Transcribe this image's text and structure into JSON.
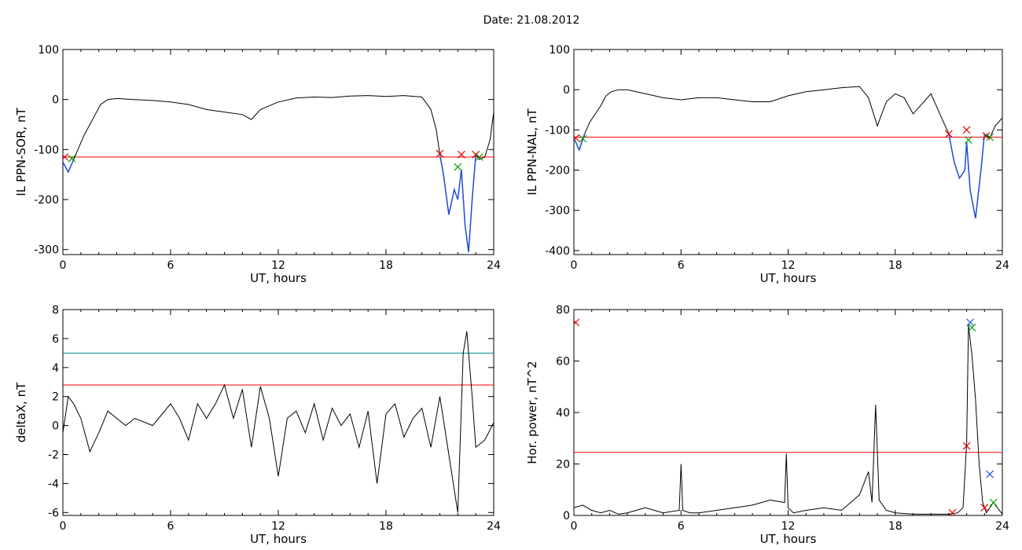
{
  "page": {
    "title": "Date:  21.08.2012"
  },
  "colors": {
    "axis": "#000000",
    "signal": "#000000",
    "threshold": "#ff0000",
    "threshold2": "#008b8b",
    "segment": "#1f4fd6",
    "marker_red": "#e00000",
    "marker_green": "#00a000",
    "marker_blue": "#1f4fd6"
  },
  "chart_data": [
    {
      "type": "line",
      "xlabel": "UT, hours",
      "ylabel": "IL PPN-SOR, nT",
      "xlim": [
        0,
        24
      ],
      "ylim": [
        -310,
        100
      ],
      "xticks": [
        0,
        6,
        12,
        18,
        24
      ],
      "yticks": [
        100,
        0,
        -100,
        -200,
        -300
      ],
      "threshold": -115,
      "series": [
        {
          "x": [
            0,
            0.3,
            0.6,
            0.9,
            1.2,
            1.5,
            1.8,
            2.1,
            2.5,
            3,
            4,
            5,
            6,
            7,
            8,
            9,
            10,
            10.5,
            11,
            12,
            13,
            14,
            15,
            16,
            17,
            18,
            19,
            20,
            20.5,
            20.8,
            21.0,
            21.2,
            21.5,
            21.8,
            22.0,
            22.2,
            22.4,
            22.6,
            22.8,
            23.0,
            23.2,
            23.5,
            23.8,
            24
          ],
          "y": [
            -125,
            -145,
            -120,
            -95,
            -70,
            -50,
            -30,
            -10,
            0,
            2,
            0,
            -2,
            -5,
            -10,
            -20,
            -25,
            -30,
            -40,
            -20,
            -5,
            3,
            5,
            4,
            7,
            8,
            6,
            8,
            5,
            -20,
            -60,
            -110,
            -150,
            -230,
            -180,
            -200,
            -140,
            -250,
            -305,
            -200,
            -110,
            -120,
            -115,
            -80,
            -25
          ]
        }
      ],
      "highlight_segments": [
        [
          0,
          0.6
        ],
        [
          21.0,
          23.0
        ]
      ],
      "markers": [
        {
          "x": 0.1,
          "y": -115,
          "color": "red"
        },
        {
          "x": 0.5,
          "y": -118,
          "color": "green"
        },
        {
          "x": 21.0,
          "y": -108,
          "color": "red"
        },
        {
          "x": 22.0,
          "y": -135,
          "color": "green"
        },
        {
          "x": 22.2,
          "y": -110,
          "color": "red"
        },
        {
          "x": 23.0,
          "y": -110,
          "color": "red"
        },
        {
          "x": 23.2,
          "y": -115,
          "color": "green"
        }
      ]
    },
    {
      "type": "line",
      "xlabel": "UT, hours",
      "ylabel": "IL PPN-NAL, nT",
      "xlim": [
        0,
        24
      ],
      "ylim": [
        -410,
        100
      ],
      "xticks": [
        0,
        6,
        12,
        18,
        24
      ],
      "yticks": [
        100,
        0,
        -100,
        -200,
        -300,
        -400
      ],
      "threshold": -118,
      "series": [
        {
          "x": [
            0,
            0.3,
            0.6,
            0.9,
            1.2,
            1.5,
            1.8,
            2.1,
            2.5,
            3,
            4,
            5,
            6,
            7,
            8,
            9,
            10,
            11,
            12,
            13,
            14,
            15,
            16,
            16.5,
            17,
            17.5,
            18,
            18.5,
            19,
            20,
            20.5,
            21,
            21.3,
            21.6,
            21.9,
            22.0,
            22.2,
            22.5,
            22.8,
            23.0,
            23.3,
            23.6,
            24
          ],
          "y": [
            -120,
            -150,
            -110,
            -80,
            -60,
            -40,
            -15,
            -5,
            0,
            0,
            -10,
            -20,
            -25,
            -20,
            -20,
            -25,
            -30,
            -30,
            -15,
            -5,
            0,
            5,
            8,
            -20,
            -90,
            -30,
            -10,
            -20,
            -60,
            -10,
            -60,
            -110,
            -180,
            -220,
            -200,
            -130,
            -250,
            -320,
            -200,
            -110,
            -120,
            -90,
            -70
          ]
        }
      ],
      "highlight_segments": [
        [
          0,
          0.6
        ],
        [
          21.0,
          23.2
        ]
      ],
      "markers": [
        {
          "x": 0.1,
          "y": -120,
          "color": "red"
        },
        {
          "x": 0.5,
          "y": -122,
          "color": "green"
        },
        {
          "x": 21.0,
          "y": -110,
          "color": "red"
        },
        {
          "x": 22.0,
          "y": -100,
          "color": "red"
        },
        {
          "x": 22.1,
          "y": -125,
          "color": "green"
        },
        {
          "x": 23.1,
          "y": -115,
          "color": "red"
        },
        {
          "x": 23.3,
          "y": -118,
          "color": "green"
        }
      ]
    },
    {
      "type": "line",
      "xlabel": "UT, hours",
      "ylabel": "deltaX, nT",
      "xlim": [
        0,
        24
      ],
      "ylim": [
        -6.2,
        8
      ],
      "xticks": [
        0,
        6,
        12,
        18,
        24
      ],
      "yticks": [
        8,
        6,
        4,
        2,
        0,
        -2,
        -4,
        -6
      ],
      "threshold": 2.8,
      "threshold2": 5.0,
      "series": [
        {
          "x": [
            0,
            0.3,
            0.6,
            1,
            1.5,
            2,
            2.5,
            3,
            3.5,
            4,
            5,
            6,
            6.5,
            7,
            7.5,
            8,
            8.5,
            9,
            9.5,
            10,
            10.5,
            11,
            11.5,
            12,
            12.5,
            13,
            13.5,
            14,
            14.5,
            15,
            15.5,
            16,
            16.5,
            17,
            17.5,
            18,
            18.5,
            19,
            19.5,
            20,
            20.5,
            21,
            21.5,
            22,
            22.3,
            22.5,
            22.8,
            23,
            23.5,
            24
          ],
          "y": [
            -0.5,
            2.0,
            1.5,
            0.5,
            -1.8,
            -0.5,
            1.0,
            0.5,
            0,
            0.5,
            0,
            1.5,
            0.5,
            -1,
            1.5,
            0.5,
            1.5,
            2.8,
            0.5,
            2.5,
            -1.5,
            2.7,
            0.5,
            -3.5,
            0.5,
            1.0,
            -0.5,
            1.5,
            -1.0,
            1.2,
            0,
            0.8,
            -1.5,
            1.0,
            -4.0,
            0.8,
            1.5,
            -0.8,
            0.5,
            1.2,
            -1.5,
            2.0,
            -2.0,
            -6.0,
            5.0,
            6.5,
            2.0,
            -1.5,
            -1.0,
            0.2
          ]
        }
      ],
      "highlight_segments": [],
      "markers": []
    },
    {
      "type": "line",
      "xlabel": "UT, hours",
      "ylabel": "Hor. power, nT^2",
      "xlim": [
        0,
        24
      ],
      "ylim": [
        0,
        80
      ],
      "xticks": [
        0,
        6,
        12,
        18,
        24
      ],
      "yticks": [
        80,
        60,
        40,
        20,
        0
      ],
      "threshold": 24.5,
      "series": [
        {
          "x": [
            0,
            0.5,
            1,
            1.5,
            2,
            2.5,
            3,
            4,
            5,
            5.9,
            6.0,
            6.1,
            6.5,
            7,
            8,
            9,
            10,
            11,
            11.8,
            11.9,
            12.0,
            12.3,
            13,
            14,
            15,
            16,
            16.5,
            16.7,
            16.9,
            17.1,
            17.5,
            18,
            19,
            20,
            21,
            21.5,
            21.8,
            22.0,
            22.1,
            22.3,
            22.5,
            22.7,
            22.9,
            23.1,
            23.5,
            24
          ],
          "y": [
            3,
            4,
            2,
            1,
            2,
            0.5,
            1,
            3,
            1,
            2,
            20,
            2,
            1,
            1,
            2,
            3,
            4,
            6,
            5,
            24,
            3,
            1,
            2,
            3,
            2,
            8,
            17,
            5,
            43,
            6,
            2,
            1,
            0.5,
            0.5,
            0.5,
            1,
            3,
            28,
            74,
            62,
            45,
            20,
            5,
            1,
            5,
            0.5
          ]
        }
      ],
      "highlight_segments": [],
      "markers": [
        {
          "x": 0.1,
          "y": 75,
          "color": "red"
        },
        {
          "x": 21.2,
          "y": 1,
          "color": "red"
        },
        {
          "x": 22.0,
          "y": 27,
          "color": "red"
        },
        {
          "x": 22.2,
          "y": 75,
          "color": "blue"
        },
        {
          "x": 22.3,
          "y": 73,
          "color": "green"
        },
        {
          "x": 23.3,
          "y": 16,
          "color": "blue"
        },
        {
          "x": 23.0,
          "y": 3,
          "color": "red"
        },
        {
          "x": 23.5,
          "y": 5,
          "color": "green"
        }
      ]
    }
  ]
}
